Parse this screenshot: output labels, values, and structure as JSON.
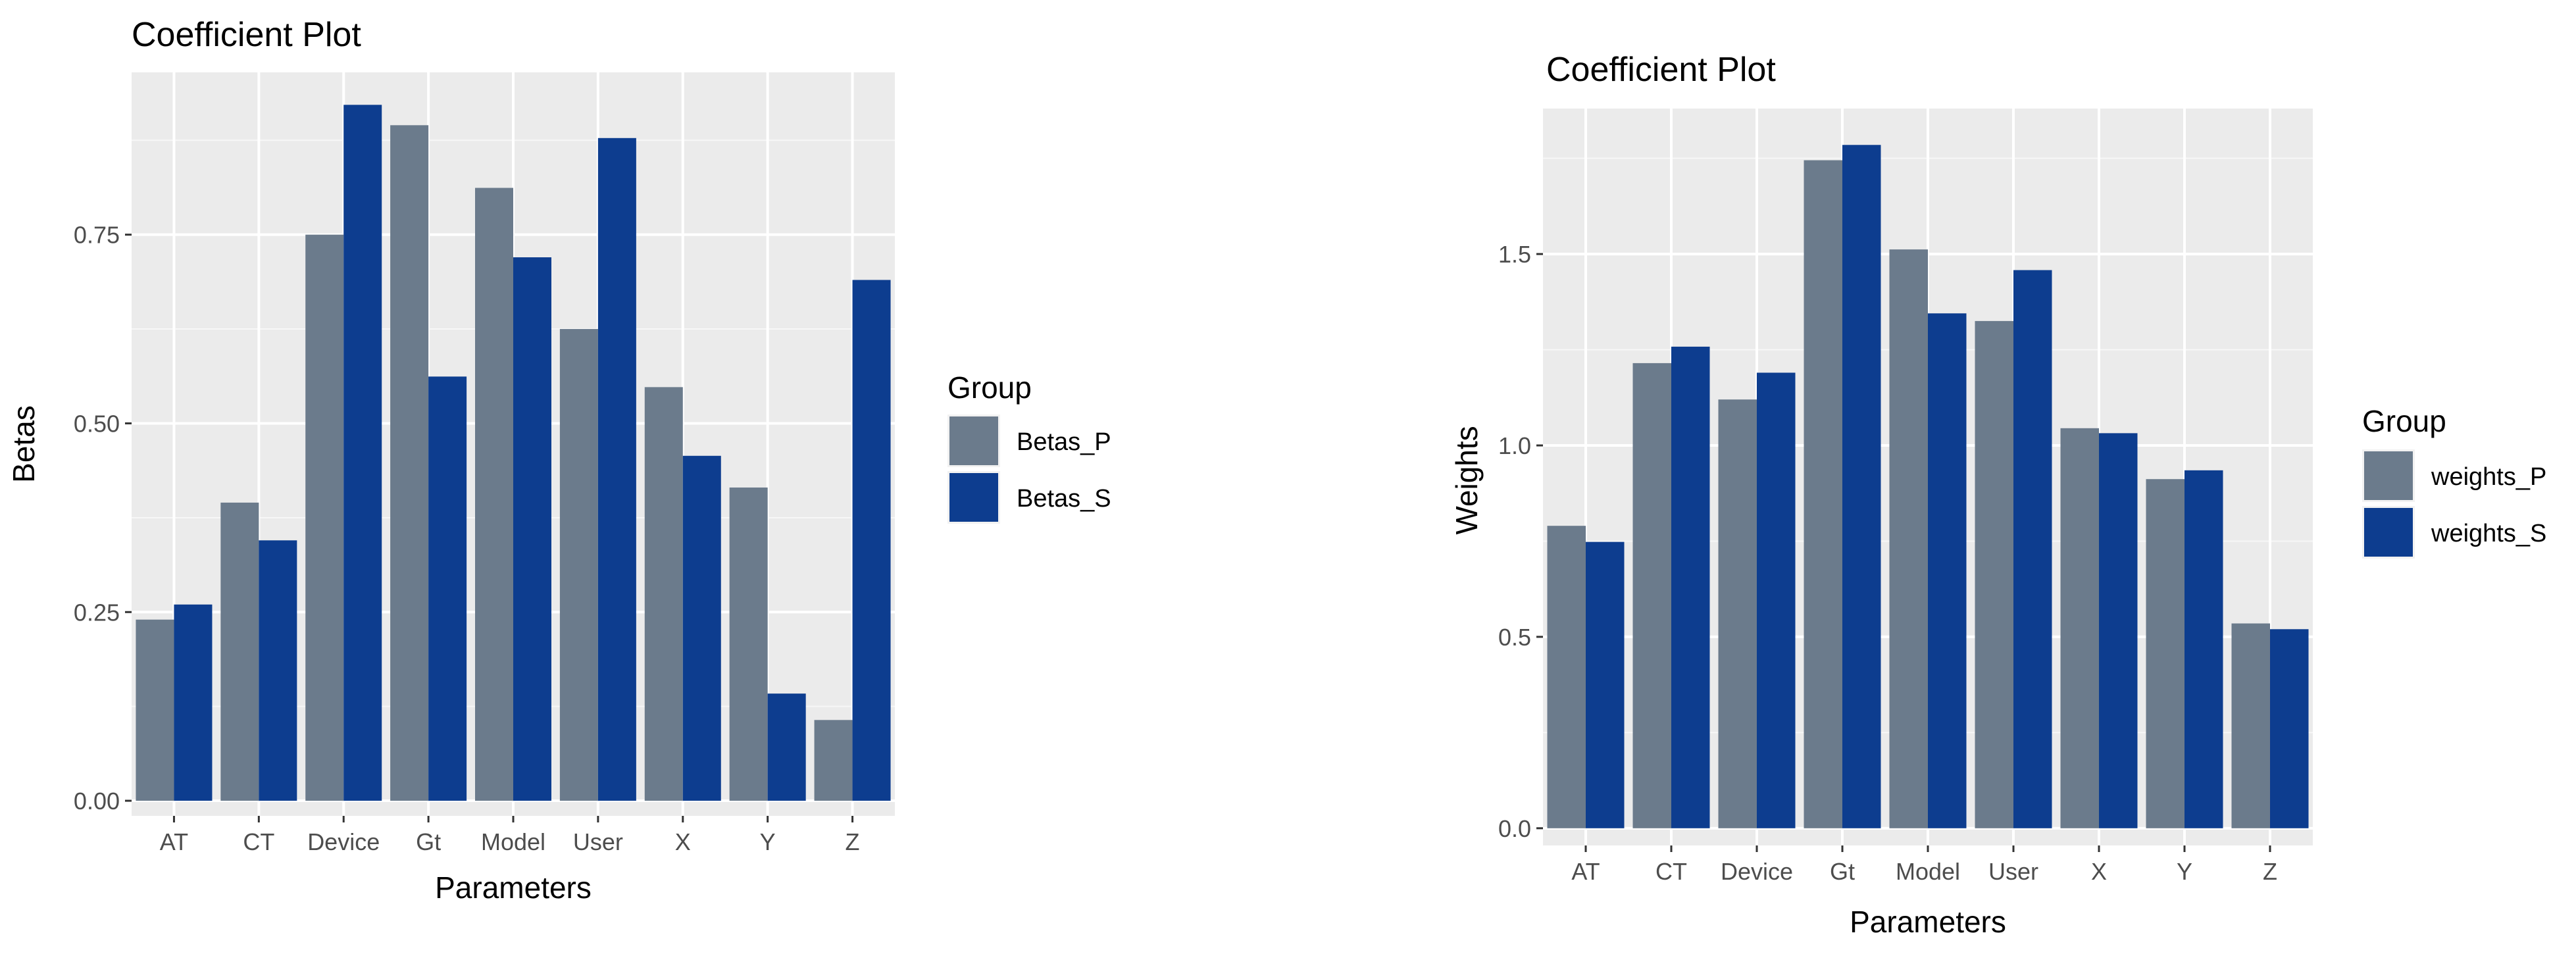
{
  "chart_data": [
    {
      "type": "bar",
      "title": "Coefficient Plot",
      "xlabel": "Parameters",
      "ylabel": "Betas",
      "categories": [
        "AT",
        "CT",
        "Device",
        "Gt",
        "Model",
        "User",
        "X",
        "Y",
        "Z"
      ],
      "series": [
        {
          "name": "Betas_P",
          "color": "#6b7b8c",
          "values": [
            0.24,
            0.395,
            0.75,
            0.895,
            0.812,
            0.625,
            0.548,
            0.415,
            0.107
          ]
        },
        {
          "name": "Betas_S",
          "color": "#0d3d8f",
          "values": [
            0.26,
            0.345,
            0.922,
            0.562,
            0.72,
            0.878,
            0.457,
            0.142,
            0.69
          ]
        }
      ],
      "ylim": [
        -0.02,
        0.965
      ],
      "yticks": [
        0.0,
        0.25,
        0.5,
        0.75
      ],
      "ytick_labels": [
        "0.00",
        "0.25",
        "0.50",
        "0.75"
      ],
      "grid": true,
      "legend_title": "Group",
      "legend_position": "right"
    },
    {
      "type": "bar",
      "title": "Coefficient Plot",
      "xlabel": "Parameters",
      "ylabel": "Weights",
      "categories": [
        "AT",
        "CT",
        "Device",
        "Gt",
        "Model",
        "User",
        "X",
        "Y",
        "Z"
      ],
      "series": [
        {
          "name": "weights_P",
          "color": "#6b7b8c",
          "values": [
            0.79,
            1.215,
            1.12,
            1.745,
            1.512,
            1.325,
            1.045,
            0.912,
            0.535
          ]
        },
        {
          "name": "weights_S",
          "color": "#0d3d8f",
          "values": [
            0.748,
            1.258,
            1.19,
            1.785,
            1.345,
            1.458,
            1.032,
            0.935,
            0.52
          ]
        }
      ],
      "ylim": [
        -0.045,
        1.88
      ],
      "yticks": [
        0.0,
        0.5,
        1.0,
        1.5
      ],
      "ytick_labels": [
        "0.0",
        "0.5",
        "1.0",
        "1.5"
      ],
      "grid": true,
      "legend_title": "Group",
      "legend_position": "right"
    }
  ]
}
